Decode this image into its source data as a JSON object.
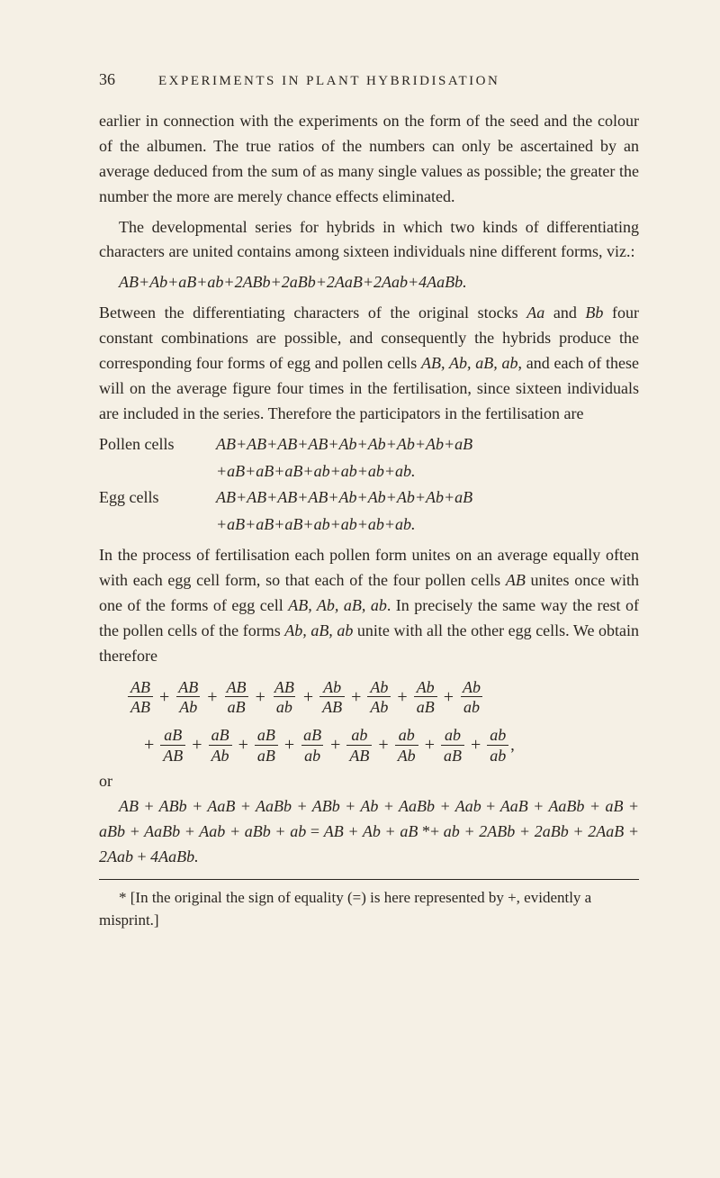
{
  "pageNumber": "36",
  "chapterTitle": "EXPERIMENTS IN PLANT HYBRIDISATION",
  "para1": "earlier in connection with the experiments on the form of the seed and the colour of the albumen. The true ratios of the numbers can only be ascertained by an average deduced from the sum of as many single values as possible; the greater the number the more are merely chance effects eliminated.",
  "para2": "The developmental series for hybrids in which two kinds of differentiating characters are united contains among sixteen individuals nine different forms, viz.:",
  "formula1": "AB+Ab+aB+ab+2ABb+2aBb+2AaB+2Aab+4AaBb.",
  "para3a": "Between the differentiating characters of the original stocks ",
  "para3b": " and ",
  "para3c": " four constant combinations are possible, and consequently the hybrids produce the corresponding four forms of egg and pollen cells ",
  "para3d": ", and each of these will on the average figure four times in the fertilisation, since sixteen individuals are included in the series. Therefore the participators in the fertilisation are",
  "Aa": "Aa",
  "Bb": "Bb",
  "ABAbaBab": "AB, Ab, aB, ab",
  "pollenLabel": "Pollen cells",
  "pollenLine1": "AB+AB+AB+AB+Ab+Ab+Ab+Ab+aB",
  "pollenLine2": "+aB+aB+aB+ab+ab+ab+ab.",
  "eggLabel": "Egg cells",
  "eggLine1": "AB+AB+AB+AB+Ab+Ab+Ab+Ab+aB",
  "eggLine2": "+aB+aB+aB+ab+ab+ab+ab.",
  "para4a": "In the process of fertilisation each pollen form unites on an average equally often with each egg cell form, so that each of the four pollen cells ",
  "para4b": " unites once with one of the forms of egg cell ",
  "para4c": ". In precisely the same way the rest of the pollen cells of the forms ",
  "para4d": " unite with all the other egg cells. We obtain therefore",
  "AB": "AB",
  "ABAbaBab2": "AB, Ab, aB, ab",
  "AbaBab": "Ab, aB, ab",
  "fractions1": [
    {
      "num": "AB",
      "den": "AB"
    },
    {
      "num": "AB",
      "den": "Ab"
    },
    {
      "num": "AB",
      "den": "aB"
    },
    {
      "num": "AB",
      "den": "ab"
    },
    {
      "num": "Ab",
      "den": "AB"
    },
    {
      "num": "Ab",
      "den": "Ab"
    },
    {
      "num": "Ab",
      "den": "aB"
    },
    {
      "num": "Ab",
      "den": "ab"
    }
  ],
  "fractions2": [
    {
      "num": "aB",
      "den": "AB"
    },
    {
      "num": "aB",
      "den": "Ab"
    },
    {
      "num": "aB",
      "den": "aB"
    },
    {
      "num": "aB",
      "den": "ab"
    },
    {
      "num": "ab",
      "den": "AB"
    },
    {
      "num": "ab",
      "den": "Ab"
    },
    {
      "num": "ab",
      "den": "aB"
    },
    {
      "num": "ab",
      "den": "ab"
    }
  ],
  "trailComma": ",",
  "or": "or",
  "result1": "AB + ABb + AaB + AaBb + ABb + Ab + AaBb + Aab",
  "result2pre": "+ ",
  "result2": "AaB + AaBb + aB + aBb + AaBb + Aab + aBb + ab",
  "result3a": "= ",
  "result3b": "AB + Ab + aB ",
  "starplus": "*+",
  "result3c": " ab + 2ABb + 2aBb + 2AaB + 2Aab",
  "result4pre": "+ ",
  "result4": "4AaBb.",
  "footnote": "* [In the original the sign of equality (=) is here represented by +, evidently a misprint.]"
}
